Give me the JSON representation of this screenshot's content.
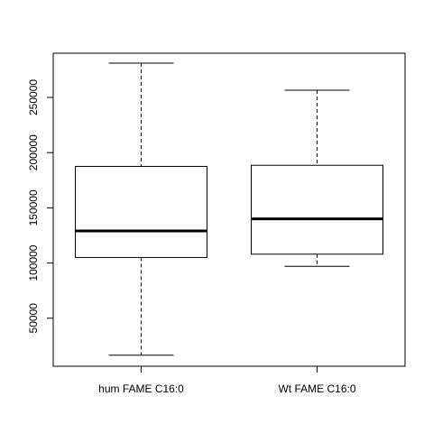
{
  "chart_data": {
    "type": "boxplot",
    "categories": [
      "hum FAME C16:0",
      "Wt FAME C16:0"
    ],
    "boxes": [
      {
        "whisker_low": 16500,
        "q1": 105000,
        "median": 129000,
        "q3": 187500,
        "whisker_high": 281000
      },
      {
        "whisker_low": 97000,
        "q1": 108000,
        "median": 140000,
        "q3": 188500,
        "whisker_high": 256500
      }
    ],
    "y_ticks": [
      50000,
      100000,
      150000,
      200000,
      250000
    ],
    "ylim": [
      6500,
      290000
    ],
    "grid": false,
    "colors": {
      "box_fill": "#ffffff",
      "stroke": "#000000",
      "median": "#000000"
    }
  }
}
